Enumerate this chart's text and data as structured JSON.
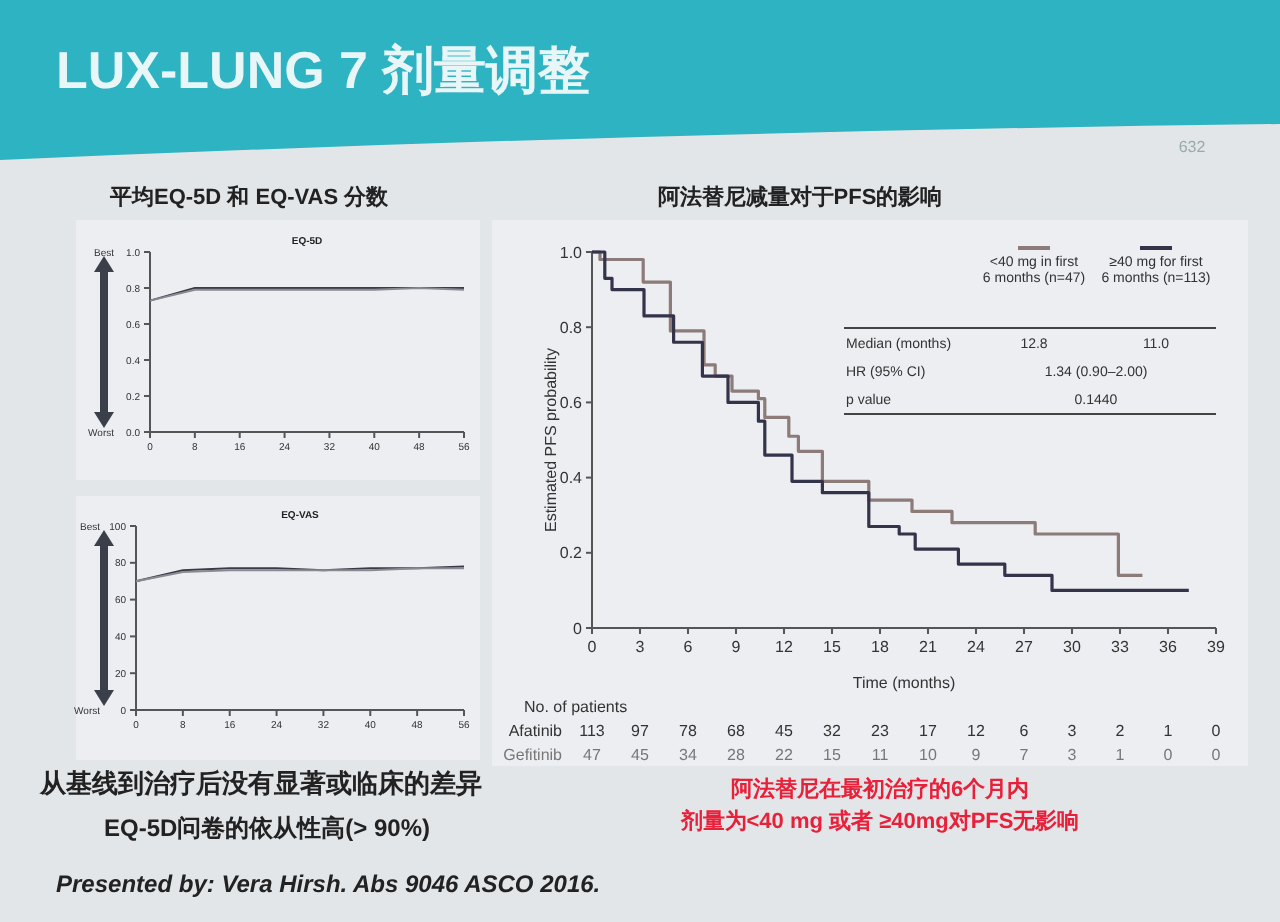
{
  "chart_data": [
    {
      "type": "other",
      "title": "LUX-LUNG 7 剂量调整",
      "annotations": [
        "平均EQ-5D 和 EQ-VAS 分数",
        "从基线到治疗后没有显著或临床的差异",
        "EQ-5D问卷的依从性高(> 90%)",
        "Presented by: Vera Hirsh. Abs 9046 ASCO 2016.",
        "阿法替尼在最初治疗的6个月内",
        "剂量为<40 mg 或者 ≥40mg对PFS无影响",
        "632"
      ]
    },
    {
      "type": "line",
      "title": "EQ-5D",
      "x": [
        0,
        8,
        16,
        24,
        32,
        40,
        48,
        56
      ],
      "series": [
        {
          "color": "#3a3a48",
          "values": [
            0.73,
            0.8,
            0.8,
            0.8,
            0.8,
            0.8,
            0.8,
            0.8
          ]
        },
        {
          "color": "#8a8a92",
          "values": [
            0.73,
            0.79,
            0.79,
            0.79,
            0.79,
            0.79,
            0.8,
            0.79
          ]
        }
      ],
      "xlim": [
        0,
        56
      ],
      "xticks": [
        0,
        8,
        16,
        24,
        32,
        40,
        48,
        56
      ],
      "ylim": [
        0,
        1
      ],
      "yticks": [
        {
          "value": 0,
          "label": "0.0"
        },
        {
          "value": 0.2,
          "label": "0.2"
        },
        {
          "value": 0.4,
          "label": "0.4"
        },
        {
          "value": 0.6,
          "label": "0.6"
        },
        {
          "value": 0.8,
          "label": "0.8"
        },
        {
          "value": 1,
          "label": "1.0"
        }
      ],
      "annotations": [
        "Best",
        "Worst"
      ]
    },
    {
      "type": "line",
      "title": "EQ-VAS",
      "x": [
        0,
        8,
        16,
        24,
        32,
        40,
        48,
        56
      ],
      "series": [
        {
          "color": "#3a3a48",
          "values": [
            70,
            76,
            77,
            77,
            76,
            77,
            77,
            78
          ]
        },
        {
          "color": "#8a8a92",
          "values": [
            70,
            75,
            76,
            76,
            76,
            76,
            77,
            77
          ]
        }
      ],
      "xlim": [
        0,
        56
      ],
      "xticks": [
        0,
        8,
        16,
        24,
        32,
        40,
        48,
        56
      ],
      "ylim": [
        0,
        100
      ],
      "yticks": [
        0,
        20,
        40,
        60,
        80,
        100
      ],
      "annotations": [
        "Best",
        "Worst"
      ]
    },
    {
      "type": "step",
      "title": "阿法替尼减量对于PFS的影响",
      "xlabel": "Time (months)",
      "ylabel": "Estimated PFS probability",
      "series": [
        {
          "name": "<40 mg in first 6 months (n=47)",
          "color": "#8c7b78",
          "x": [
            0,
            0.5,
            3.2,
            4.9,
            7.0,
            7.7,
            8.75,
            10.4,
            10.8,
            12.3,
            12.9,
            14.4,
            17.3,
            20,
            22.5,
            27.7,
            32.9,
            34.4
          ],
          "values": [
            1,
            0.98,
            0.92,
            0.79,
            0.7,
            0.67,
            0.63,
            0.61,
            0.56,
            0.51,
            0.47,
            0.39,
            0.34,
            0.31,
            0.28,
            0.25,
            0.14,
            0.14
          ]
        },
        {
          "name": "≥40 mg for first 6 months (n=113)",
          "color": "#33334a",
          "x": [
            0,
            0.8,
            1.25,
            3.25,
            5.1,
            6.9,
            8.5,
            10.4,
            10.8,
            12.5,
            14.4,
            17.3,
            19.2,
            20.2,
            22.9,
            25.8,
            28.75,
            37.3
          ],
          "values": [
            1,
            0.93,
            0.9,
            0.83,
            0.76,
            0.67,
            0.6,
            0.55,
            0.46,
            0.39,
            0.36,
            0.27,
            0.25,
            0.21,
            0.17,
            0.14,
            0.1,
            0.1
          ]
        }
      ],
      "xlim": [
        0,
        39
      ],
      "xticks": [
        0,
        3,
        6,
        9,
        12,
        15,
        18,
        21,
        24,
        27,
        30,
        33,
        36,
        39
      ],
      "ylim": [
        0,
        1
      ],
      "yticks": [
        0,
        {
          "value": 0.2,
          "label": "0.2"
        },
        {
          "value": 0.4,
          "label": "0.4"
        },
        {
          "value": 0.6,
          "label": "0.6"
        },
        {
          "value": 0.8,
          "label": "0.8"
        },
        {
          "value": 1,
          "label": "1.0"
        }
      ],
      "legend": "top right",
      "annotations": [
        "Median (months)",
        "12.8",
        "11.0",
        "HR (95% CI)",
        "1.34 (0.90–2.00)",
        "p value",
        "0.1440",
        "No. of patients",
        "Afatinib 113 97 78 68 45 32 23 17 12 6 3 2 1 0",
        "Gefitinib 47 45 34 28 22 15 11 10 9 7 3 1 0 0"
      ]
    }
  ]
}
